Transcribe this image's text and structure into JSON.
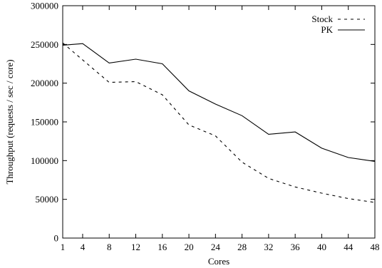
{
  "chart_data": {
    "type": "line",
    "title": "",
    "xlabel": "Cores",
    "ylabel": "Throughput (requests / sec / core)",
    "x_ticks": [
      1,
      4,
      8,
      12,
      16,
      20,
      24,
      28,
      32,
      36,
      40,
      44,
      48
    ],
    "y_ticks": [
      0,
      50000,
      100000,
      150000,
      200000,
      250000,
      300000
    ],
    "xlim": [
      1,
      48
    ],
    "ylim": [
      0,
      300000
    ],
    "grid": false,
    "legend_position": "top-right",
    "series": [
      {
        "name": "Stock",
        "style": "dashed",
        "color": "#000000",
        "x": [
          1,
          4,
          8,
          12,
          16,
          20,
          24,
          28,
          32,
          36,
          40,
          44,
          48
        ],
        "y": [
          252000,
          230000,
          201000,
          202000,
          185000,
          146000,
          132000,
          98000,
          77000,
          66000,
          58000,
          51000,
          46000
        ]
      },
      {
        "name": "PK",
        "style": "solid",
        "color": "#000000",
        "x": [
          1,
          4,
          8,
          12,
          16,
          20,
          24,
          28,
          32,
          36,
          40,
          44,
          48
        ],
        "y": [
          249000,
          251000,
          226000,
          231000,
          225000,
          190000,
          173000,
          158000,
          134000,
          137000,
          116000,
          104000,
          99000
        ]
      }
    ]
  }
}
